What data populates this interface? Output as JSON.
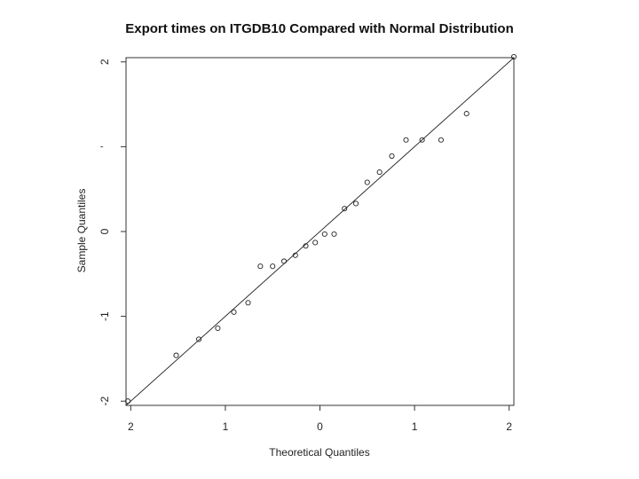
{
  "chart_data": {
    "type": "scatter",
    "title": "Export times on ITGDB10 Compared with Normal Distribution",
    "xlabel": "Theoretical Quantiles",
    "ylabel": "Sample Quantiles",
    "xlim": [
      -2.05,
      2.05
    ],
    "ylim": [
      -2.05,
      2.05
    ],
    "x_ticks": [
      -2,
      -1,
      0,
      1,
      2
    ],
    "x_tick_labels": [
      "2",
      "1",
      "0",
      "1",
      "2"
    ],
    "y_ticks": [
      -2,
      -1,
      0,
      1,
      2
    ],
    "y_tick_labels": [
      "-2",
      "-1",
      "0",
      "’",
      "2"
    ],
    "grid": false,
    "reference_line": {
      "x": [
        -2.1,
        2.1
      ],
      "y": [
        -2.1,
        2.1
      ]
    },
    "x": [
      -2.03,
      -1.52,
      -1.28,
      -1.08,
      -0.91,
      -0.76,
      -0.63,
      -0.5,
      -0.38,
      -0.26,
      -0.15,
      -0.05,
      0.05,
      0.15,
      0.26,
      0.38,
      0.5,
      0.63,
      0.76,
      0.91,
      1.08,
      1.28,
      1.55,
      2.05
    ],
    "y": [
      -2.0,
      -1.46,
      -1.27,
      -1.14,
      -0.95,
      -0.84,
      -0.41,
      -0.41,
      -0.35,
      -0.28,
      -0.17,
      -0.13,
      -0.03,
      -0.03,
      0.27,
      0.33,
      0.58,
      0.7,
      0.89,
      1.08,
      1.08,
      1.08,
      1.39,
      2.06
    ]
  }
}
